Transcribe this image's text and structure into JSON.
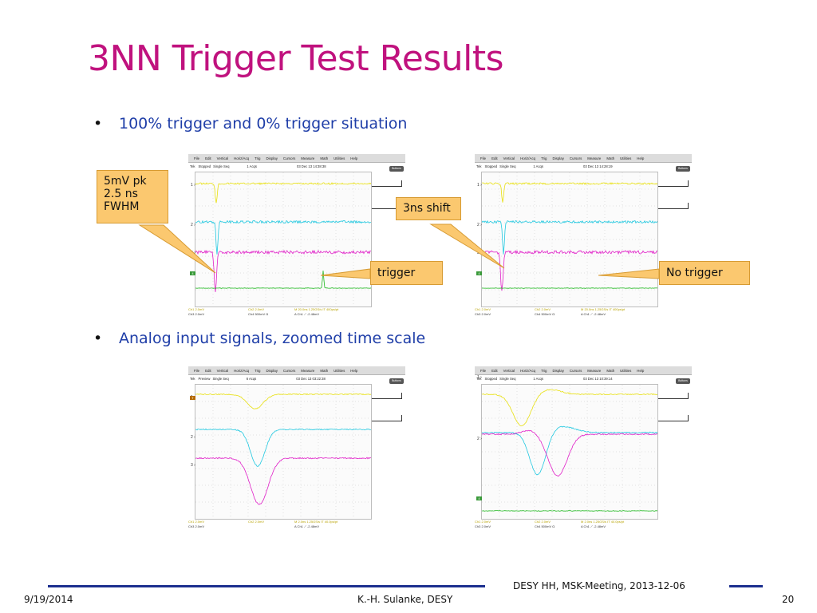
{
  "slide": {
    "title": "3NN Trigger Test Results",
    "bullets": [
      "100% trigger and 0% trigger situation",
      "Analog input signals, zoomed time scale"
    ],
    "callouts": {
      "pk": [
        "5mV pk",
        "2.5 ns",
        "FWHM"
      ],
      "shift": "3ns shift",
      "trigger": "trigger",
      "no_trigger": "No trigger"
    },
    "footer": {
      "date": "9/19/2014",
      "author": "K.-H. Sulanke, DESY",
      "meeting": "DESY HH, MSK-Meeting, 2013-12-06",
      "page": "20"
    }
  },
  "scope_ui": {
    "menu": [
      "File",
      "Edit",
      "Vertical",
      "Horiz/Acq",
      "Trig",
      "Display",
      "Cursors",
      "Measure",
      "Math",
      "Utilities",
      "Help"
    ],
    "run_button": "Buttons",
    "colors": {
      "ch1": "#e8e010",
      "ch2": "#20c8e0",
      "ch3": "#e020c8",
      "ch4": "#20b820"
    }
  },
  "scopes": [
    {
      "status": [
        "Tek",
        "Stopped",
        "Single Seq",
        "1 Acqs",
        "03 Dec 13 14:38:38"
      ],
      "readout_l": [
        "Ch1   2.0mV",
        "Ch3   2.0mV"
      ],
      "readout_m": [
        "Ch2   2.0mV",
        "Ch4   500mV  Ω"
      ],
      "readout_r": [
        "M 20.0ns 1.25GS/s   IT 400ps/pt",
        "A  Ch1  ⟋  -2.48mV"
      ]
    },
    {
      "status": [
        "Tek",
        "Stopped",
        "Single Seq",
        "1 Acqs",
        "03 Dec 13 14:28:19"
      ],
      "readout_l": [
        "Ch1   2.0mV",
        "Ch3   2.0mV"
      ],
      "readout_m": [
        "Ch2   2.0mV",
        "Ch4   500mV  Ω"
      ],
      "readout_r": [
        "M 20.0ns 1.25GS/s   IT 400ps/pt",
        "A  Ch1  ⟋  -2.48mV"
      ]
    },
    {
      "status": [
        "Tek",
        "Preview",
        "Single Seq",
        "6 Acqs",
        "03 Dec 13 03:22:38"
      ],
      "readout_l": [
        "Ch1   2.0mV",
        "Ch3   2.0mV"
      ],
      "readout_m": [
        "Ch2   2.0mV",
        ""
      ],
      "readout_r": [
        "M 2.0ns 1.25GS/s   IT 40.0ps/pt",
        "A  Ch1  ⟋  -2.48mV"
      ]
    },
    {
      "status": [
        "Tek",
        "Stopped",
        "Single Seq",
        "1 Acqs",
        "03 Dec 13 10:39:14"
      ],
      "readout_l": [
        "Ch1   2.0mV",
        "Ch3   2.0mV"
      ],
      "readout_m": [
        "Ch2   2.0mV",
        "Ch4   500mV  Ω"
      ],
      "readout_r": [
        "M 2.0ns 1.25GS/s   IT 40.0ps/pt",
        "A  Ch1  ⟋  -2.48mV"
      ]
    }
  ]
}
